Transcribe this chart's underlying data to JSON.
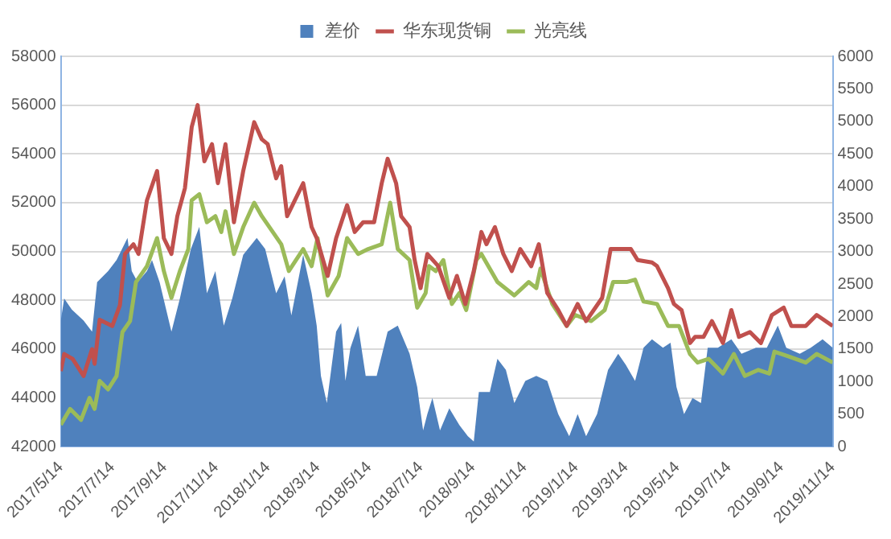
{
  "chart_data": {
    "type": "line",
    "xlim": [
      "2017-05-14",
      "2019-11-14"
    ],
    "xticks": [
      {
        "value": "2017-05-14",
        "label": "2017/5/14"
      },
      {
        "value": "2017-07-14",
        "label": "2017/7/14"
      },
      {
        "value": "2017-09-14",
        "label": "2017/9/14"
      },
      {
        "value": "2017-11-14",
        "label": "2017/11/14"
      },
      {
        "value": "2018-01-14",
        "label": "2018/1/14"
      },
      {
        "value": "2018-03-14",
        "label": "2018/3/14"
      },
      {
        "value": "2018-05-14",
        "label": "2018/5/14"
      },
      {
        "value": "2018-07-14",
        "label": "2018/7/14"
      },
      {
        "value": "2018-09-14",
        "label": "2018/9/14"
      },
      {
        "value": "2018-11-14",
        "label": "2018/11/14"
      },
      {
        "value": "2019-01-14",
        "label": "2019/1/14"
      },
      {
        "value": "2019-03-14",
        "label": "2019/3/14"
      },
      {
        "value": "2019-05-14",
        "label": "2019/5/14"
      },
      {
        "value": "2019-07-14",
        "label": "2019/7/14"
      },
      {
        "value": "2019-09-14",
        "label": "2019/9/14"
      },
      {
        "value": "2019-11-14",
        "label": "2019/11/14"
      }
    ],
    "ylim": [
      42000,
      58000
    ],
    "yticks": [
      42000,
      44000,
      46000,
      48000,
      50000,
      52000,
      54000,
      56000,
      58000
    ],
    "y2lim": [
      0,
      6000
    ],
    "y2ticks": [
      0,
      500,
      1000,
      1500,
      2000,
      2500,
      3000,
      3500,
      4000,
      4500,
      5000,
      5500,
      6000
    ],
    "grid": "y",
    "legend": "top",
    "marker": "none",
    "series": [
      {
        "name": "差价",
        "type": "area",
        "axis": "y2",
        "color": "#4f81bd",
        "x": [
          "2017-05-14",
          "2017-05-18",
          "2017-05-27",
          "2017-06-10",
          "2017-06-20",
          "2017-06-26",
          "2017-07-09",
          "2017-07-19",
          "2017-08-01",
          "2017-08-06",
          "2017-08-13",
          "2017-08-24",
          "2017-08-30",
          "2017-09-08",
          "2017-09-22",
          "2017-10-02",
          "2017-10-15",
          "2017-10-25",
          "2017-11-03",
          "2017-11-13",
          "2017-11-23",
          "2017-12-03",
          "2017-12-16",
          "2018-01-01",
          "2018-01-11",
          "2018-01-24",
          "2018-02-03",
          "2018-02-11",
          "2018-02-25",
          "2018-03-07",
          "2018-03-13",
          "2018-03-18",
          "2018-03-25",
          "2018-04-05",
          "2018-04-11",
          "2018-04-16",
          "2018-04-22",
          "2018-05-01",
          "2018-05-10",
          "2018-05-23",
          "2018-06-05",
          "2018-06-17",
          "2018-07-01",
          "2018-07-10",
          "2018-07-17",
          "2018-07-22",
          "2018-07-28",
          "2018-08-06",
          "2018-08-17",
          "2018-08-29",
          "2018-09-08",
          "2018-09-15",
          "2018-09-21",
          "2018-10-04",
          "2018-10-13",
          "2018-10-23",
          "2018-11-02",
          "2018-11-15",
          "2018-11-28",
          "2018-12-11",
          "2018-12-24",
          "2019-01-06",
          "2019-01-16",
          "2019-01-26",
          "2019-02-08",
          "2019-02-21",
          "2019-03-05",
          "2019-03-14",
          "2019-03-25",
          "2019-04-04",
          "2019-04-14",
          "2019-04-27",
          "2019-05-06",
          "2019-05-13",
          "2019-05-22",
          "2019-06-01",
          "2019-06-11",
          "2019-06-19",
          "2019-07-01",
          "2019-07-17",
          "2019-07-29",
          "2019-08-15",
          "2019-08-28",
          "2019-09-10",
          "2019-09-20",
          "2019-10-06",
          "2019-10-19",
          "2019-11-02",
          "2019-11-14"
        ],
        "values": [
          1940,
          2280,
          2110,
          1940,
          1770,
          2530,
          2700,
          2870,
          3210,
          2700,
          2530,
          2700,
          2870,
          2530,
          1770,
          2280,
          3040,
          3380,
          2360,
          2700,
          1860,
          2280,
          2950,
          3210,
          3040,
          2360,
          2620,
          2020,
          2950,
          2360,
          1860,
          1090,
          670,
          1770,
          1900,
          1010,
          1520,
          1860,
          1090,
          1090,
          1770,
          1860,
          1430,
          920,
          250,
          500,
          750,
          250,
          590,
          330,
          160,
          80,
          840,
          840,
          1350,
          1180,
          670,
          1010,
          1090,
          1010,
          500,
          160,
          500,
          160,
          500,
          1180,
          1430,
          1260,
          1010,
          1520,
          1650,
          1520,
          1600,
          920,
          500,
          750,
          670,
          1520,
          1520,
          1650,
          1430,
          1520,
          1520,
          1860,
          1520,
          1430,
          1520,
          1650,
          1520
        ]
      },
      {
        "name": "华东现货铜",
        "type": "line",
        "color": "#c0504d",
        "x": [
          "2017-05-14",
          "2017-05-18",
          "2017-05-28",
          "2017-06-10",
          "2017-06-20",
          "2017-06-23",
          "2017-06-29",
          "2017-07-14",
          "2017-07-23",
          "2017-07-29",
          "2017-08-08",
          "2017-08-14",
          "2017-08-24",
          "2017-09-05",
          "2017-09-13",
          "2017-09-22",
          "2017-09-29",
          "2017-10-08",
          "2017-10-16",
          "2017-10-23",
          "2017-10-31",
          "2017-11-09",
          "2017-11-16",
          "2017-11-25",
          "2017-12-05",
          "2017-12-16",
          "2017-12-29",
          "2018-01-07",
          "2018-01-14",
          "2018-01-24",
          "2018-01-30",
          "2018-02-06",
          "2018-02-25",
          "2018-03-07",
          "2018-03-13",
          "2018-03-26",
          "2018-04-05",
          "2018-04-18",
          "2018-04-27",
          "2018-05-07",
          "2018-05-20",
          "2018-05-29",
          "2018-06-05",
          "2018-06-15",
          "2018-06-21",
          "2018-07-01",
          "2018-07-07",
          "2018-07-14",
          "2018-07-22",
          "2018-08-04",
          "2018-08-17",
          "2018-08-26",
          "2018-09-05",
          "2018-09-15",
          "2018-09-24",
          "2018-09-30",
          "2018-10-10",
          "2018-10-20",
          "2018-10-30",
          "2018-11-09",
          "2018-11-22",
          "2018-12-01",
          "2018-12-11",
          "2018-12-24",
          "2019-01-03",
          "2019-01-16",
          "2019-01-26",
          "2019-02-14",
          "2019-02-24",
          "2019-03-06",
          "2019-03-20",
          "2019-03-28",
          "2019-04-14",
          "2019-04-20",
          "2019-05-03",
          "2019-05-10",
          "2019-05-19",
          "2019-05-29",
          "2019-06-04",
          "2019-06-14",
          "2019-06-24",
          "2019-07-07",
          "2019-07-17",
          "2019-07-26",
          "2019-08-08",
          "2019-08-21",
          "2019-09-03",
          "2019-09-17",
          "2019-09-26",
          "2019-10-13",
          "2019-10-26",
          "2019-11-14"
        ],
        "values": [
          45100,
          45800,
          45600,
          44900,
          46000,
          45400,
          47200,
          46950,
          47800,
          49900,
          50300,
          49900,
          52100,
          53300,
          50550,
          49900,
          51450,
          52600,
          55100,
          56000,
          53700,
          54400,
          52800,
          54400,
          51200,
          53300,
          55300,
          54600,
          54400,
          53000,
          53500,
          51450,
          52800,
          51000,
          50550,
          49000,
          50550,
          51900,
          50800,
          51200,
          51200,
          52800,
          53800,
          52800,
          51450,
          51000,
          49650,
          48500,
          49900,
          49400,
          48100,
          49000,
          47850,
          49200,
          50800,
          50300,
          51000,
          49900,
          49200,
          50100,
          49400,
          50300,
          48300,
          47600,
          46950,
          47850,
          47150,
          48100,
          50100,
          50100,
          50100,
          49650,
          49550,
          49400,
          48500,
          47850,
          47600,
          46250,
          46500,
          46500,
          47150,
          46250,
          47600,
          46500,
          46700,
          46250,
          47400,
          47700,
          46950,
          46950,
          47400,
          46950
        ]
      },
      {
        "name": "光亮线",
        "type": "line",
        "color": "#9bbb59",
        "x": [
          "2017-05-14",
          "2017-05-25",
          "2017-06-07",
          "2017-06-17",
          "2017-06-23",
          "2017-06-29",
          "2017-07-09",
          "2017-07-19",
          "2017-07-26",
          "2017-08-04",
          "2017-08-11",
          "2017-08-24",
          "2017-09-05",
          "2017-09-13",
          "2017-09-22",
          "2017-10-02",
          "2017-10-12",
          "2017-10-16",
          "2017-10-25",
          "2017-11-03",
          "2017-11-13",
          "2017-11-20",
          "2017-11-25",
          "2017-12-05",
          "2017-12-16",
          "2017-12-29",
          "2018-01-07",
          "2018-01-20",
          "2018-01-30",
          "2018-02-08",
          "2018-02-25",
          "2018-03-07",
          "2018-03-14",
          "2018-03-26",
          "2018-04-08",
          "2018-04-18",
          "2018-05-01",
          "2018-05-13",
          "2018-05-29",
          "2018-06-08",
          "2018-06-17",
          "2018-07-01",
          "2018-07-10",
          "2018-07-20",
          "2018-07-24",
          "2018-08-01",
          "2018-08-10",
          "2018-08-20",
          "2018-08-29",
          "2018-09-06",
          "2018-09-18",
          "2018-09-24",
          "2018-10-13",
          "2018-11-02",
          "2018-11-19",
          "2018-11-28",
          "2018-12-03",
          "2018-12-17",
          "2019-01-03",
          "2019-01-13",
          "2019-02-01",
          "2019-02-17",
          "2019-02-27",
          "2019-03-15",
          "2019-03-25",
          "2019-04-04",
          "2019-04-20",
          "2019-05-03",
          "2019-05-16",
          "2019-05-29",
          "2019-06-07",
          "2019-06-20",
          "2019-07-07",
          "2019-07-20",
          "2019-08-02",
          "2019-08-18",
          "2019-08-31",
          "2019-09-06",
          "2019-09-23",
          "2019-10-13",
          "2019-10-26",
          "2019-11-14"
        ],
        "values": [
          42900,
          43550,
          43100,
          44000,
          43550,
          44700,
          44350,
          44900,
          46700,
          47150,
          48750,
          49400,
          50550,
          49200,
          48100,
          49200,
          50100,
          52100,
          52350,
          51200,
          51450,
          50800,
          51650,
          49900,
          51000,
          52000,
          51450,
          50800,
          50300,
          49200,
          50100,
          49400,
          50550,
          48200,
          49000,
          50550,
          49900,
          50100,
          50300,
          52000,
          50100,
          49650,
          47700,
          48300,
          49400,
          49200,
          49650,
          47850,
          48300,
          47600,
          49650,
          49900,
          48750,
          48200,
          48750,
          48500,
          49300,
          47850,
          46950,
          47400,
          47150,
          47600,
          48750,
          48750,
          48850,
          47950,
          47850,
          46950,
          46950,
          45800,
          45450,
          45600,
          45000,
          45800,
          44900,
          45150,
          45000,
          45900,
          45700,
          45450,
          45800,
          45450
        ]
      }
    ]
  }
}
